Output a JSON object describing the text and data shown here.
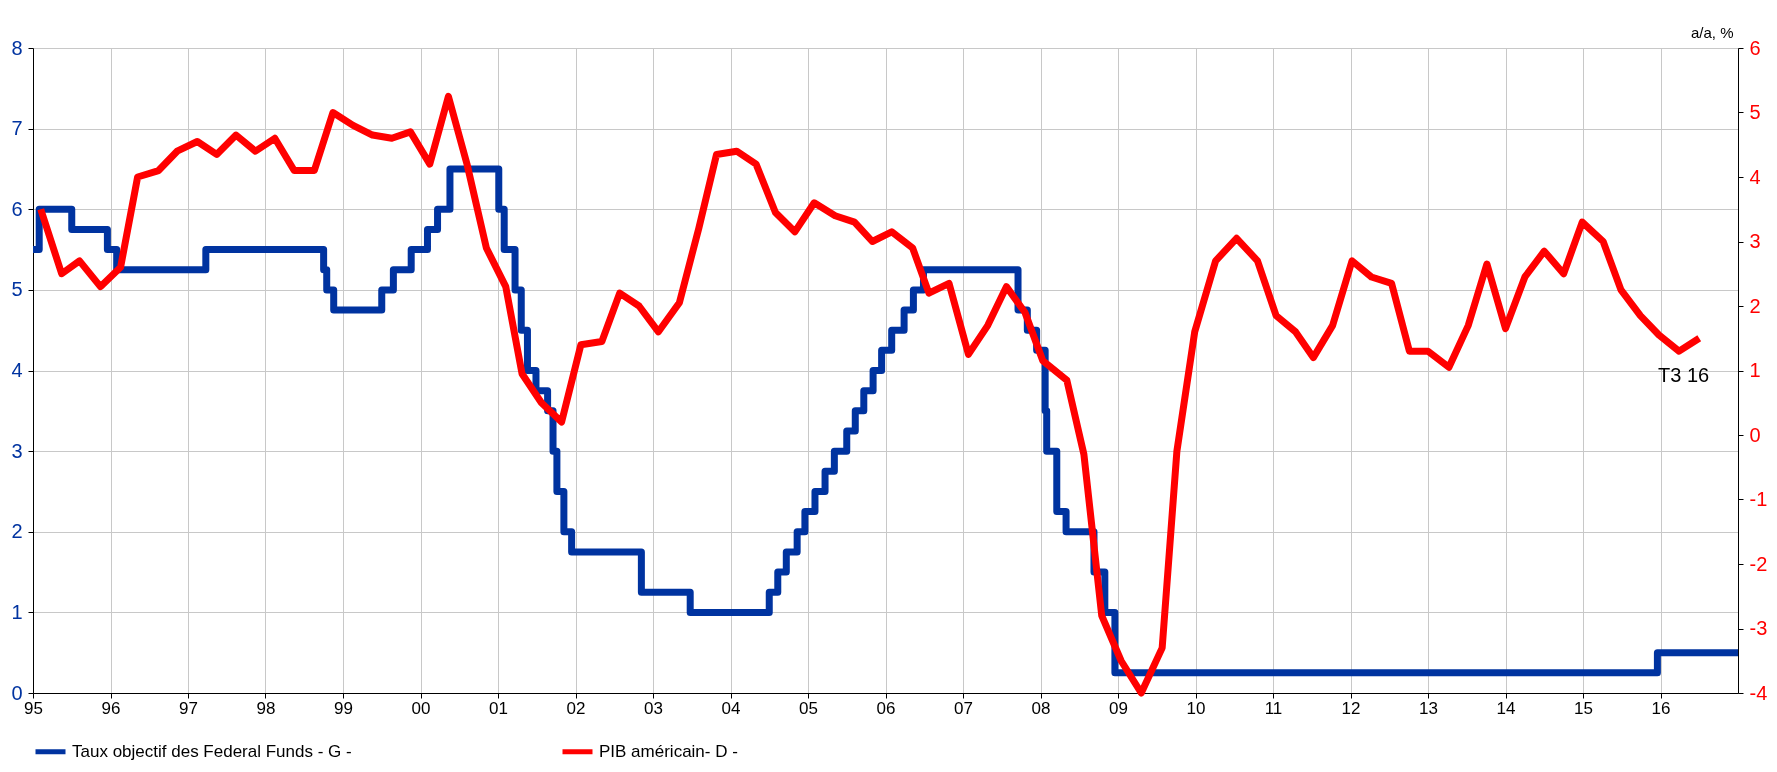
{
  "chart_data": {
    "type": "line",
    "y2label": "a/a, %",
    "xlim": [
      1995,
      2017
    ],
    "xticks": [
      {
        "value": 1995,
        "label": "95"
      },
      {
        "value": 1996,
        "label": "96"
      },
      {
        "value": 1997,
        "label": "97"
      },
      {
        "value": 1998,
        "label": "98"
      },
      {
        "value": 1999,
        "label": "99"
      },
      {
        "value": 2000,
        "label": "00"
      },
      {
        "value": 2001,
        "label": "01"
      },
      {
        "value": 2002,
        "label": "02"
      },
      {
        "value": 2003,
        "label": "03"
      },
      {
        "value": 2004,
        "label": "04"
      },
      {
        "value": 2005,
        "label": "05"
      },
      {
        "value": 2006,
        "label": "06"
      },
      {
        "value": 2007,
        "label": "07"
      },
      {
        "value": 2008,
        "label": "08"
      },
      {
        "value": 2009,
        "label": "09"
      },
      {
        "value": 2010,
        "label": "10"
      },
      {
        "value": 2011,
        "label": "11"
      },
      {
        "value": 2012,
        "label": "12"
      },
      {
        "value": 2013,
        "label": "13"
      },
      {
        "value": 2014,
        "label": "14"
      },
      {
        "value": 2015,
        "label": "15"
      },
      {
        "value": 2016,
        "label": "16"
      }
    ],
    "ylim": [
      0,
      8
    ],
    "yticks": [
      0,
      1,
      2,
      3,
      4,
      5,
      6,
      7,
      8
    ],
    "y2lim": [
      -4,
      6
    ],
    "y2ticks": [
      -4,
      -3,
      -2,
      -1,
      0,
      1,
      2,
      3,
      4,
      5,
      6
    ],
    "grid": true,
    "legend": "bottom",
    "annotations": [
      "T3 16"
    ],
    "series": [
      {
        "name": "Taux objectif des Federal Funds - G -",
        "type": "step",
        "color": "#0033a0",
        "x": [
          1995.0,
          1995.08,
          1995.5,
          1995.96,
          1996.08,
          1997.23,
          1998.75,
          1998.79,
          1998.88,
          1999.5,
          1999.65,
          1999.88,
          2000.09,
          2000.22,
          2000.38,
          2001.01,
          2001.08,
          2001.22,
          2001.3,
          2001.38,
          2001.49,
          2001.64,
          2001.71,
          2001.76,
          2001.85,
          2001.95,
          2002.85,
          2003.48,
          2004.5,
          2004.61,
          2004.72,
          2004.86,
          2004.96,
          2005.09,
          2005.22,
          2005.34,
          2005.5,
          2005.61,
          2005.72,
          2005.84,
          2005.95,
          2006.08,
          2006.24,
          2006.36,
          2006.49,
          2007.71,
          2007.83,
          2007.95,
          2008.06,
          2008.08,
          2008.21,
          2008.33,
          2008.69,
          2008.83,
          2008.96,
          2015.96,
          2017.0
        ],
        "values": [
          5.5,
          6.0,
          5.75,
          5.5,
          5.25,
          5.5,
          5.25,
          5.0,
          4.75,
          5.0,
          5.25,
          5.5,
          5.75,
          6.0,
          6.5,
          6.0,
          5.5,
          5.0,
          4.5,
          4.0,
          3.75,
          3.5,
          3.0,
          2.5,
          2.0,
          1.75,
          1.25,
          1.0,
          1.25,
          1.5,
          1.75,
          2.0,
          2.25,
          2.5,
          2.75,
          3.0,
          3.25,
          3.5,
          3.75,
          4.0,
          4.25,
          4.5,
          4.75,
          5.0,
          5.25,
          4.75,
          4.5,
          4.25,
          3.5,
          3.0,
          2.25,
          2.0,
          1.5,
          1.0,
          0.25,
          0.5,
          0.5
        ]
      },
      {
        "name": "PIB américain- D -",
        "type": "line",
        "axis": "y2",
        "color": "#ff0000",
        "x": [
          1995.1,
          1995.37,
          1995.6,
          1995.87,
          1996.13,
          1996.35,
          1996.62,
          1996.86,
          1997.12,
          1997.37,
          1997.62,
          1997.87,
          1998.12,
          1998.37,
          1998.63,
          1998.87,
          1999.13,
          1999.38,
          1999.63,
          1999.87,
          2000.12,
          2000.36,
          2000.6,
          2000.85,
          2001.1,
          2001.31,
          2001.56,
          2001.82,
          2002.07,
          2002.34,
          2002.57,
          2002.82,
          2003.07,
          2003.34,
          2003.59,
          2003.82,
          2004.08,
          2004.33,
          2004.58,
          2004.83,
          2005.08,
          2005.35,
          2005.6,
          2005.83,
          2006.08,
          2006.35,
          2006.56,
          2006.82,
          2007.07,
          2007.32,
          2007.56,
          2007.8,
          2008.03,
          2008.34,
          2008.56,
          2008.79,
          2009.04,
          2009.3,
          2009.57,
          2009.76,
          2009.99,
          2010.26,
          2010.53,
          2010.8,
          2011.04,
          2011.29,
          2011.52,
          2011.77,
          2012.02,
          2012.27,
          2012.53,
          2012.76,
          2013.0,
          2013.27,
          2013.52,
          2013.76,
          2014.0,
          2014.25,
          2014.5,
          2014.75,
          2014.99,
          2015.26,
          2015.49,
          2015.74,
          2015.98,
          2016.24,
          2016.5
        ],
        "values": [
          3.5,
          2.5,
          2.7,
          2.3,
          2.6,
          4.0,
          4.1,
          4.4,
          4.55,
          4.35,
          4.65,
          4.4,
          4.6,
          4.1,
          4.1,
          5.0,
          4.8,
          4.65,
          4.6,
          4.7,
          4.2,
          5.25,
          4.2,
          2.9,
          2.3,
          0.95,
          0.5,
          0.2,
          1.4,
          1.45,
          2.2,
          2.0,
          1.6,
          2.05,
          3.2,
          4.35,
          4.4,
          4.2,
          3.45,
          3.15,
          3.6,
          3.4,
          3.3,
          3.0,
          3.15,
          2.9,
          2.2,
          2.35,
          1.25,
          1.7,
          2.3,
          1.9,
          1.15,
          0.85,
          -0.3,
          -2.8,
          -3.5,
          -4.0,
          -3.3,
          -0.25,
          1.6,
          2.7,
          3.05,
          2.7,
          1.85,
          1.6,
          1.2,
          1.7,
          2.7,
          2.45,
          2.35,
          1.3,
          1.3,
          1.05,
          1.7,
          2.65,
          1.65,
          2.45,
          2.85,
          2.5,
          3.3,
          3.0,
          2.25,
          1.85,
          1.55,
          1.3,
          1.5
        ]
      }
    ]
  }
}
